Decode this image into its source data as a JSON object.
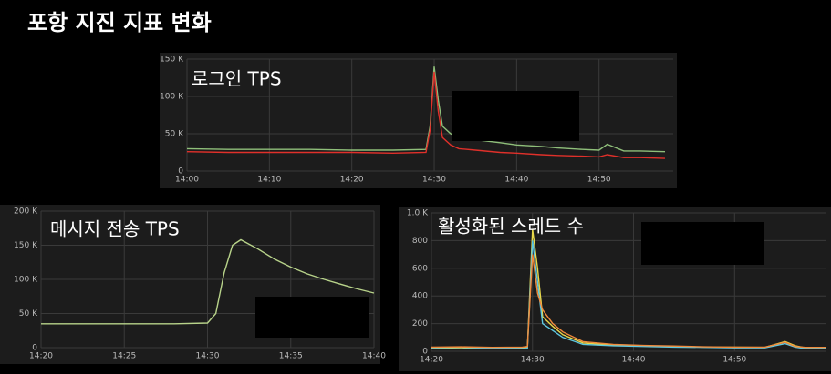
{
  "title": "포항 지진 지표 변화",
  "chart_data": [
    {
      "type": "line",
      "title": "로그인 TPS",
      "x": [
        0,
        5,
        10,
        15,
        20,
        25,
        29,
        29.5,
        30,
        30.5,
        31,
        32,
        33,
        35,
        38,
        40,
        43,
        45,
        48,
        50,
        51,
        53,
        55,
        58
      ],
      "xlim": [
        0,
        59
      ],
      "xticks": [
        {
          "value": 0,
          "label": "14:00"
        },
        {
          "value": 10,
          "label": "14:10"
        },
        {
          "value": 20,
          "label": "14:20"
        },
        {
          "value": 30,
          "label": "14:30"
        },
        {
          "value": 40,
          "label": "14:40"
        },
        {
          "value": 50,
          "label": "14:50"
        }
      ],
      "ylim": [
        0,
        150000
      ],
      "yticks": [
        0,
        {
          "value": 50000,
          "label": "50 K"
        },
        {
          "value": 100000,
          "label": "100 K"
        },
        {
          "value": 150000,
          "label": "150 K"
        }
      ],
      "grid": true,
      "series": [
        {
          "color": "#8fbf7a",
          "values": [
            30000,
            29000,
            29000,
            29000,
            28000,
            28000,
            29000,
            60000,
            140000,
            95000,
            60000,
            50000,
            45000,
            42000,
            38000,
            35000,
            33000,
            31000,
            29000,
            28000,
            36000,
            27000,
            27000,
            26000
          ]
        },
        {
          "color": "#e0302a",
          "values": [
            26000,
            25000,
            25000,
            25000,
            25000,
            24000,
            25000,
            55000,
            133000,
            80000,
            45000,
            35000,
            30000,
            28000,
            25000,
            24000,
            22000,
            21000,
            20000,
            19000,
            22000,
            18000,
            18000,
            17000
          ]
        }
      ]
    },
    {
      "type": "line",
      "title": "메시지 전송 TPS",
      "x": [
        0,
        2,
        4,
        6,
        8,
        10,
        10.5,
        11,
        11.5,
        12,
        13,
        14,
        15,
        16,
        17,
        18,
        19,
        20
      ],
      "xlim": [
        0,
        20
      ],
      "xticks": [
        {
          "value": 0,
          "label": "14:20"
        },
        {
          "value": 5,
          "label": "14:25"
        },
        {
          "value": 10,
          "label": "14:30"
        },
        {
          "value": 15,
          "label": "14:35"
        },
        {
          "value": 20,
          "label": "14:40"
        }
      ],
      "ylim": [
        0,
        200000
      ],
      "yticks": [
        0,
        {
          "value": 50000,
          "label": "50 K"
        },
        {
          "value": 100000,
          "label": "100 K"
        },
        {
          "value": 150000,
          "label": "150 K"
        },
        {
          "value": 200000,
          "label": "200 K"
        }
      ],
      "grid": true,
      "series": [
        {
          "color": "#b8d38a",
          "values": [
            35000,
            35000,
            35000,
            35000,
            35000,
            36000,
            50000,
            110000,
            150000,
            158000,
            145000,
            130000,
            118000,
            108000,
            100000,
            93000,
            86000,
            80000
          ]
        }
      ]
    },
    {
      "type": "line",
      "title": "활성화된 스레드 수",
      "x": [
        0,
        3,
        6,
        9,
        9.5,
        10,
        10.5,
        11,
        12,
        13,
        15,
        18,
        21,
        24,
        27,
        30,
        33,
        35,
        36,
        37,
        39
      ],
      "xlim": [
        0,
        39
      ],
      "xticks": [
        {
          "value": 0,
          "label": "14:20"
        },
        {
          "value": 10,
          "label": "14:30"
        },
        {
          "value": 20,
          "label": "14:40"
        },
        {
          "value": 30,
          "label": "14:50"
        }
      ],
      "ylim": [
        0,
        1000
      ],
      "yticks": [
        0,
        200,
        400,
        600,
        800,
        {
          "value": 1000,
          "label": "1.0 K"
        }
      ],
      "grid": true,
      "series": [
        {
          "color": "#e8d84a",
          "values": [
            25,
            28,
            22,
            26,
            30,
            880,
            600,
            250,
            180,
            120,
            60,
            45,
            40,
            35,
            30,
            30,
            28,
            70,
            40,
            25,
            25
          ]
        },
        {
          "color": "#5fc8e0",
          "values": [
            20,
            18,
            24,
            20,
            22,
            800,
            500,
            200,
            150,
            100,
            50,
            40,
            35,
            30,
            28,
            25,
            25,
            55,
            30,
            20,
            22
          ]
        },
        {
          "color": "#f08a3c",
          "values": [
            30,
            32,
            28,
            30,
            35,
            700,
            420,
            300,
            200,
            140,
            70,
            50,
            42,
            38,
            32,
            30,
            30,
            65,
            35,
            28,
            28
          ]
        }
      ]
    }
  ]
}
